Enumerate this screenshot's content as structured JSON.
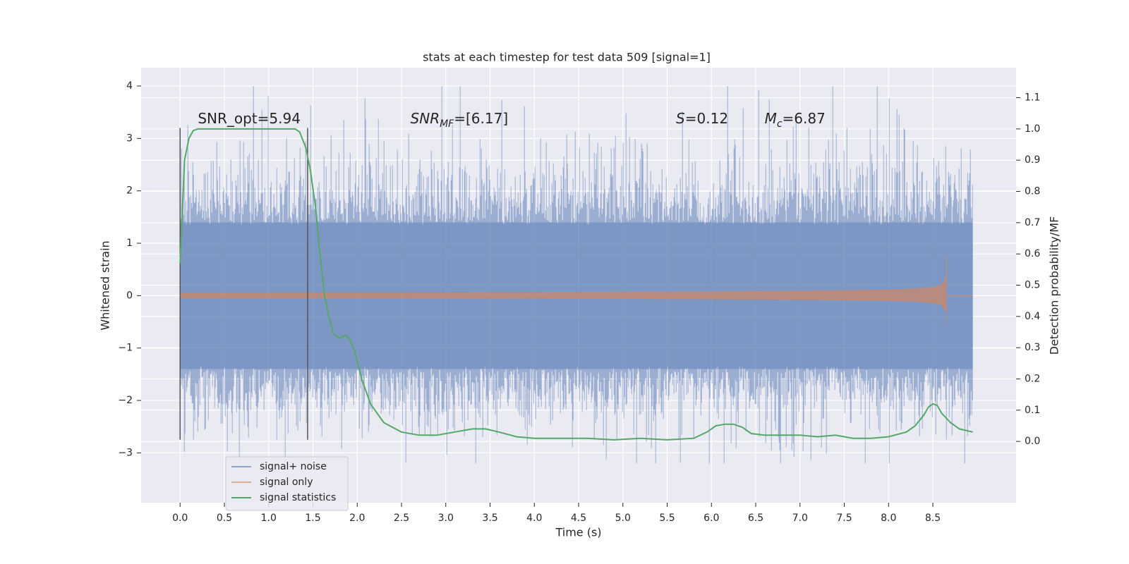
{
  "chart_data": {
    "type": "line",
    "title": "stats at each timestep for test data 509 [signal=1]",
    "xlabel": "Time (s)",
    "ylabel_left": "Whitened strain",
    "ylabel_right": "Detection probability/MF",
    "xlim": [
      -0.44,
      9.44
    ],
    "ylim_left": [
      -3.95,
      4.35
    ],
    "ylim_right": [
      -0.196,
      1.196
    ],
    "x_ticks": [
      0.0,
      0.5,
      1.0,
      1.5,
      2.0,
      2.5,
      3.0,
      3.5,
      4.0,
      4.5,
      5.0,
      5.5,
      6.0,
      6.5,
      7.0,
      7.5,
      8.0,
      8.5
    ],
    "x_tick_labels": [
      "0.0",
      "0.5",
      "1.0",
      "1.5",
      "2.0",
      "2.5",
      "3.0",
      "3.5",
      "4.0",
      "4.5",
      "5.0",
      "5.5",
      "6.0",
      "6.5",
      "7.0",
      "7.5",
      "8.0",
      "8.5"
    ],
    "y_left_ticks": [
      4,
      3,
      2,
      1,
      0,
      -1,
      -2,
      -3
    ],
    "y_left_tick_labels": [
      "4",
      "3",
      "2",
      "1",
      "0",
      "−1",
      "−2",
      "−3"
    ],
    "y_right_ticks": [
      1.1,
      1.0,
      0.9,
      0.8,
      0.7,
      0.6,
      0.5,
      0.4,
      0.3,
      0.2,
      0.1,
      0.0
    ],
    "y_right_tick_labels": [
      "1.1",
      "1.0",
      "0.9",
      "0.8",
      "0.7",
      "0.6",
      "0.5",
      "0.4",
      "0.3",
      "0.2",
      "0.1",
      "0.0"
    ],
    "grid": true,
    "legend_position": "lower-left",
    "series": [
      {
        "name": "signal+ noise",
        "axis": "left",
        "color": "#4c72b0",
        "kind": "noise",
        "x_range": [
          0.0,
          8.95
        ],
        "typical_band": [
          -1.4,
          1.4
        ],
        "peak_envelope": [
          -3.2,
          4.0
        ]
      },
      {
        "name": "signal only",
        "axis": "left",
        "color": "#dd8452",
        "kind": "chirp",
        "x_range": [
          0.0,
          8.95
        ],
        "merger_time": 8.65,
        "peak_amplitude": 0.75
      },
      {
        "name": "signal statistics",
        "axis": "right",
        "color": "#55a868",
        "kind": "line",
        "x": [
          0.0,
          0.05,
          0.1,
          0.15,
          0.2,
          0.3,
          0.5,
          0.8,
          1.0,
          1.2,
          1.3,
          1.35,
          1.42,
          1.47,
          1.53,
          1.58,
          1.63,
          1.68,
          1.73,
          1.8,
          1.87,
          1.92,
          1.97,
          2.05,
          2.15,
          2.3,
          2.5,
          2.7,
          2.9,
          3.1,
          3.3,
          3.45,
          3.6,
          3.8,
          4.0,
          4.3,
          4.6,
          4.9,
          5.2,
          5.5,
          5.8,
          5.95,
          6.05,
          6.15,
          6.25,
          6.35,
          6.45,
          6.6,
          6.8,
          7.0,
          7.2,
          7.4,
          7.6,
          7.8,
          8.0,
          8.2,
          8.3,
          8.4,
          8.45,
          8.5,
          8.55,
          8.6,
          8.7,
          8.8,
          8.95
        ],
        "y": [
          0.57,
          0.9,
          0.97,
          0.995,
          1.0,
          1.0,
          1.0,
          1.0,
          1.0,
          1.0,
          1.0,
          0.99,
          0.94,
          0.87,
          0.75,
          0.6,
          0.47,
          0.4,
          0.345,
          0.33,
          0.34,
          0.325,
          0.29,
          0.2,
          0.12,
          0.06,
          0.03,
          0.02,
          0.02,
          0.03,
          0.04,
          0.04,
          0.03,
          0.015,
          0.01,
          0.01,
          0.01,
          0.005,
          0.01,
          0.005,
          0.01,
          0.03,
          0.05,
          0.055,
          0.055,
          0.045,
          0.025,
          0.02,
          0.02,
          0.02,
          0.015,
          0.02,
          0.01,
          0.01,
          0.015,
          0.03,
          0.05,
          0.085,
          0.11,
          0.12,
          0.115,
          0.09,
          0.06,
          0.04,
          0.03
        ]
      }
    ],
    "annotations": [
      {
        "id": "snr-opt",
        "text": "SNR_opt=5.94",
        "x": 0.2,
        "y_right": 1.0
      },
      {
        "id": "snr-mf",
        "base": "SNR",
        "sub": "MF",
        "rest": "=[6.17]",
        "x": 2.6,
        "y_right": 1.0
      },
      {
        "id": "s-val",
        "base": "S",
        "rest": "=0.12",
        "x": 5.6,
        "y_right": 1.0
      },
      {
        "id": "mc-val",
        "base": "M",
        "sub": "c",
        "rest": "=6.87",
        "x": 6.6,
        "y_right": 1.0
      }
    ],
    "vertical_markers": [
      {
        "x": 0.0,
        "y_range": [
          -2.75,
          3.2
        ]
      },
      {
        "x": 1.44,
        "y_range": [
          -2.75,
          3.2
        ]
      }
    ]
  }
}
